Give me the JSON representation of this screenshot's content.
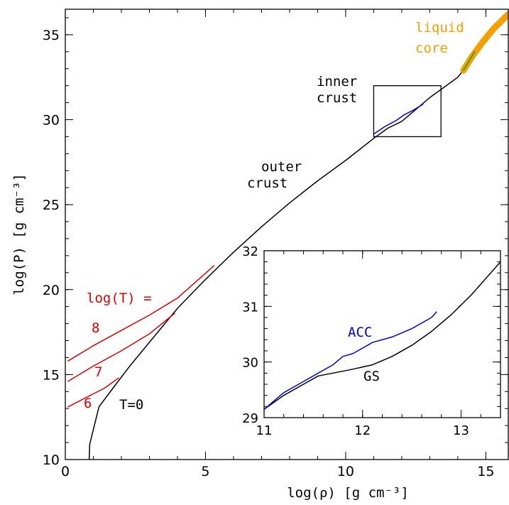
{
  "chart_data": [
    {
      "type": "line",
      "xlabel": "log(ρ)   [g cm⁻³]",
      "ylabel": "log(P)   [g cm⁻³]",
      "xlim": [
        0,
        15.8
      ],
      "ylim": [
        10,
        36.5
      ],
      "xticks": [
        "0",
        "5",
        "10",
        "15"
      ],
      "yticks": [
        "10",
        "15",
        "20",
        "25",
        "30",
        "35"
      ],
      "series": [
        {
          "color": "#000000",
          "x": [
            0.85,
            0.87,
            1.2,
            1.7,
            2.3,
            3.0,
            4.0,
            5.0,
            6.0,
            7.0,
            8.0,
            9.0,
            10.0,
            11.0,
            11.5,
            12.0,
            12.5,
            13.0,
            13.5,
            14.0,
            14.2
          ],
          "y": [
            10.0,
            10.9,
            13.1,
            14.2,
            15.5,
            16.9,
            18.9,
            20.6,
            22.2,
            23.7,
            25.1,
            26.4,
            27.6,
            28.9,
            29.5,
            29.9,
            30.6,
            31.3,
            31.9,
            32.5,
            32.9
          ]
        },
        {
          "color": "#dd0000",
          "x": [
            0.1,
            1.0,
            2.0,
            3.0,
            4.0,
            5.3
          ],
          "y": [
            15.8,
            16.7,
            17.6,
            18.5,
            19.5,
            21.4
          ]
        },
        {
          "color": "#dd0000",
          "x": [
            0.1,
            1.0,
            2.0,
            3.0,
            3.9
          ],
          "y": [
            14.6,
            15.5,
            16.4,
            17.4,
            18.6
          ]
        },
        {
          "color": "#dd0000",
          "x": [
            0.1,
            0.8,
            1.4,
            1.9
          ],
          "y": [
            13.1,
            13.7,
            14.2,
            14.8
          ]
        },
        {
          "color": "#0000dd",
          "x": [
            11.0,
            11.4,
            11.8,
            12.1,
            12.4,
            12.75
          ],
          "y": [
            29.15,
            29.6,
            29.95,
            30.3,
            30.55,
            30.9
          ]
        },
        {
          "color": "#f5a000",
          "x": [
            14.2,
            14.5,
            14.9,
            15.3,
            15.8
          ],
          "y": [
            32.9,
            33.7,
            34.6,
            35.4,
            36.2
          ]
        },
        {
          "color": "#00aa00",
          "x": [
            14.2,
            14.6
          ],
          "y": [
            32.9,
            34.0
          ]
        }
      ]
    },
    {
      "type": "line",
      "xlim": [
        11,
        13.4
      ],
      "ylim": [
        29,
        32
      ],
      "xticks": [
        "11",
        "12",
        "13"
      ],
      "yticks": [
        "29",
        "30",
        "31",
        "32"
      ],
      "series": [
        {
          "name": "GS",
          "color": "#000000",
          "x": [
            11.0,
            11.2,
            11.4,
            11.55,
            11.7,
            11.9,
            12.1,
            12.3,
            12.5,
            12.7,
            12.9,
            13.1,
            13.4
          ],
          "y": [
            29.15,
            29.4,
            29.6,
            29.75,
            29.8,
            29.87,
            29.95,
            30.1,
            30.3,
            30.55,
            30.85,
            31.2,
            31.8
          ]
        },
        {
          "name": "ACC",
          "color": "#0000dd",
          "x": [
            11.0,
            11.2,
            11.4,
            11.55,
            11.7,
            11.8,
            11.9,
            12.0,
            12.1,
            12.3,
            12.5,
            12.7,
            12.75
          ],
          "y": [
            29.15,
            29.45,
            29.65,
            29.8,
            29.95,
            30.1,
            30.15,
            30.25,
            30.35,
            30.45,
            30.6,
            30.8,
            30.9
          ]
        }
      ]
    }
  ],
  "annotations": {
    "log_t": "log(T) =",
    "t8": "8",
    "t7": "7",
    "t6": "6",
    "t0": "T=0",
    "outer1": "outer",
    "outer2": "crust",
    "inner1": "inner",
    "inner2": "crust",
    "liquid1": "liquid",
    "liquid2": "core",
    "acc": "ACC",
    "gs": "GS"
  },
  "colors": {
    "red": "#dd0000",
    "blue": "#0000dd",
    "orange": "#f5a000",
    "green": "#00aa00",
    "black": "#000000"
  }
}
